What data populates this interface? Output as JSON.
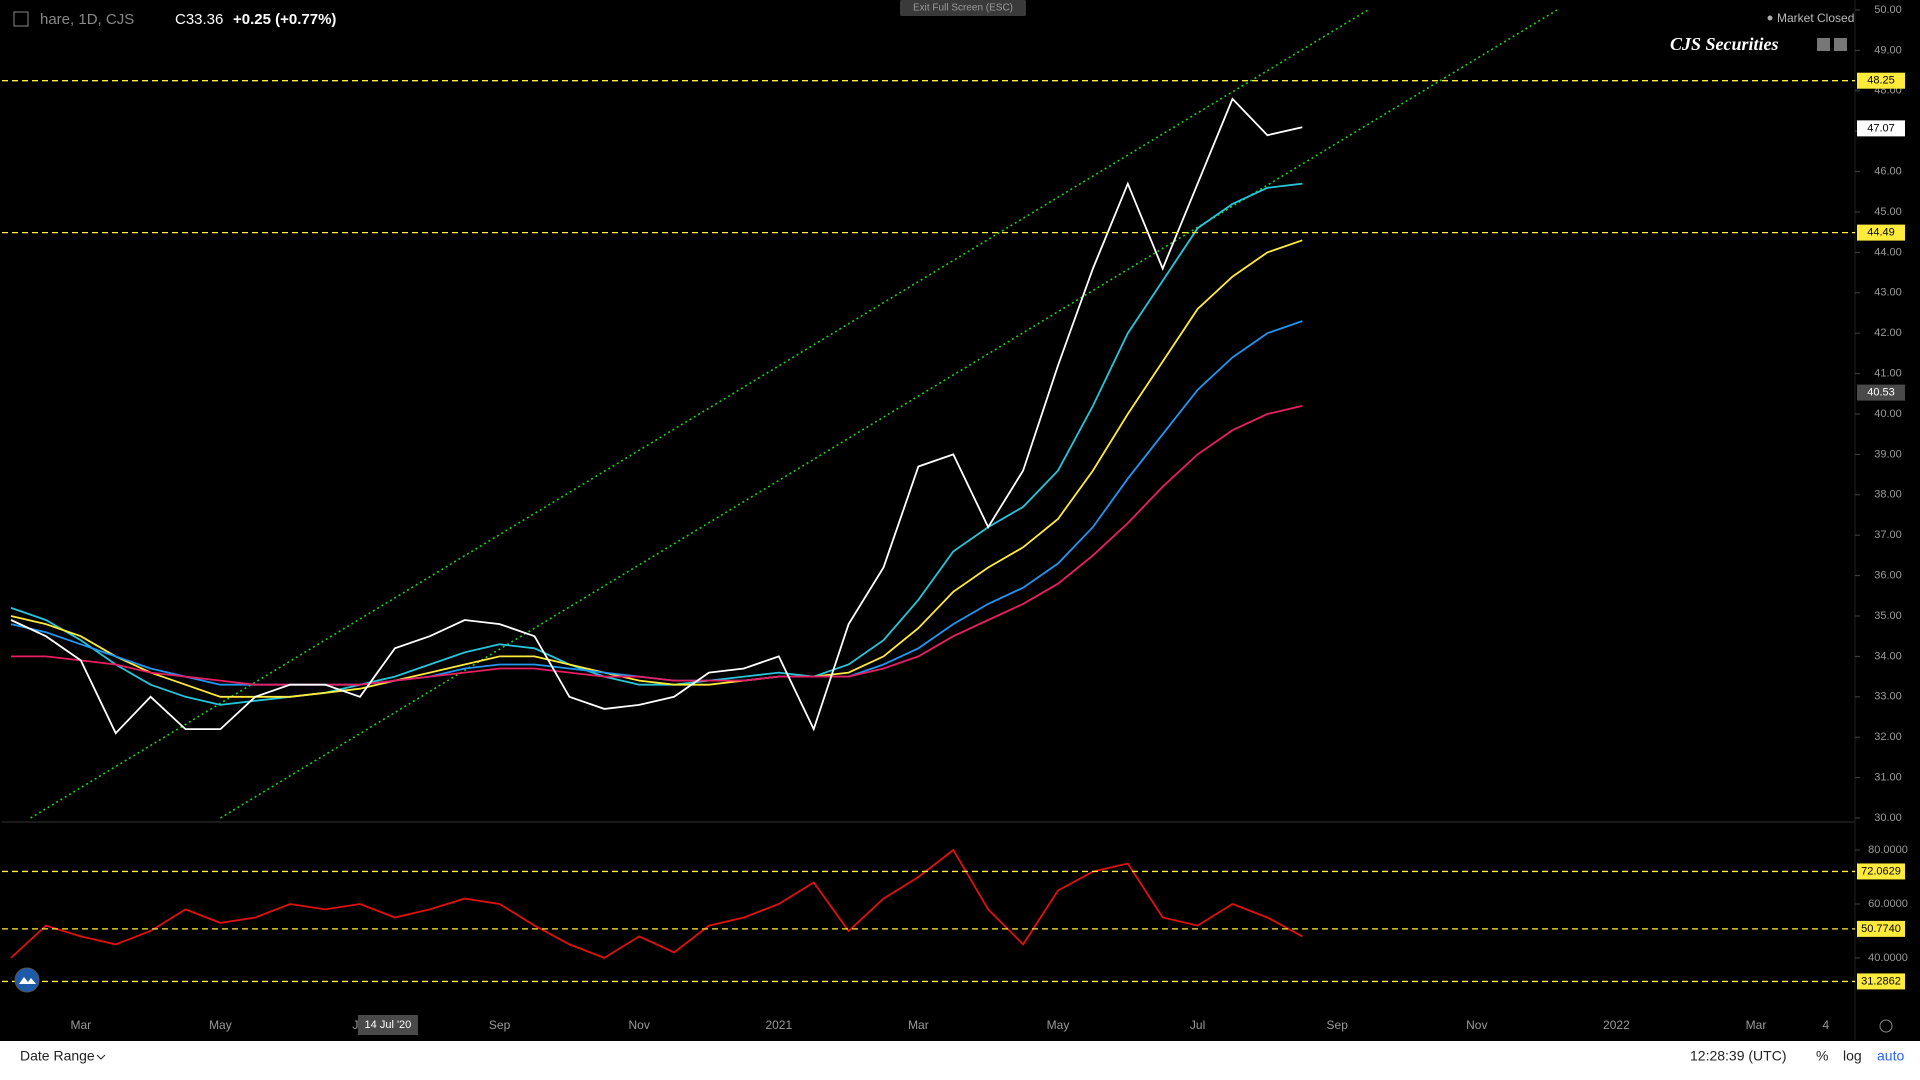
{
  "ui": {
    "symbol": "hare, 1D, CJS",
    "close": "C33.36",
    "change": "+0.25 (+0.77%)",
    "exit_fullscreen": "Exit Full Screen (ESC)",
    "market_status": "Market Closed",
    "brand": "CJS Securities",
    "date_range": "Date Range",
    "clock": "12:28:39 (UTC)",
    "percent": "%",
    "log": "log",
    "auto": "auto"
  },
  "chart_data": [
    {
      "type": "line",
      "categories": [
        null,
        null,
        "Mar",
        null,
        null,
        null,
        "May",
        null,
        null,
        null,
        "Jul",
        null,
        null,
        null,
        "Sep",
        null,
        null,
        null,
        "Nov",
        null,
        null,
        null,
        "2021",
        null,
        null,
        null,
        "Mar",
        null,
        null,
        null,
        "May",
        null,
        null,
        null,
        "Jul",
        null,
        null,
        null,
        "Sep",
        null,
        null,
        null,
        "Nov",
        null,
        null,
        null,
        "2022",
        null,
        null,
        null,
        "Mar",
        null,
        "4",
        null
      ],
      "crosshair_label": "14 Jul '20",
      "series": [
        {
          "color": "#26c6da",
          "values": [
            35.2,
            34.9,
            34.4,
            33.8,
            33.3,
            33.0,
            32.8,
            32.9,
            33.0,
            33.1,
            33.3,
            33.5,
            33.8,
            34.1,
            34.3,
            34.2,
            33.8,
            33.5,
            33.3,
            33.3,
            33.4,
            33.5,
            33.6,
            33.5,
            33.8,
            34.4,
            35.4,
            36.6,
            37.2,
            37.7,
            38.6,
            40.2,
            42.0,
            43.3,
            44.6,
            45.2,
            45.6,
            45.7,
            null,
            null,
            null,
            null,
            null,
            null,
            null,
            null,
            null,
            null,
            null,
            null,
            null,
            null,
            null,
            null
          ]
        },
        {
          "color": "#ffeb3b",
          "values": [
            35.0,
            34.8,
            34.5,
            34.0,
            33.6,
            33.3,
            33.0,
            33.0,
            33.0,
            33.1,
            33.2,
            33.4,
            33.6,
            33.8,
            34.0,
            34.0,
            33.8,
            33.6,
            33.4,
            33.3,
            33.3,
            33.4,
            33.5,
            33.5,
            33.6,
            34.0,
            34.7,
            35.6,
            36.2,
            36.7,
            37.4,
            38.6,
            40.0,
            41.3,
            42.6,
            43.4,
            44.0,
            44.3,
            null,
            null,
            null,
            null,
            null,
            null,
            null,
            null,
            null,
            null,
            null,
            null,
            null,
            null,
            null,
            null
          ]
        },
        {
          "color": "#2196f3",
          "values": [
            34.8,
            34.6,
            34.3,
            34.0,
            33.7,
            33.5,
            33.3,
            33.3,
            33.3,
            33.3,
            33.3,
            33.4,
            33.5,
            33.7,
            33.8,
            33.8,
            33.7,
            33.6,
            33.5,
            33.4,
            33.4,
            33.4,
            33.5,
            33.5,
            33.5,
            33.8,
            34.2,
            34.8,
            35.3,
            35.7,
            36.3,
            37.2,
            38.4,
            39.5,
            40.6,
            41.4,
            42.0,
            42.3,
            null,
            null,
            null,
            null,
            null,
            null,
            null,
            null,
            null,
            null,
            null,
            null,
            null,
            null,
            null,
            null
          ]
        },
        {
          "color": "#e91e63",
          "values": [
            34.0,
            34.0,
            33.9,
            33.8,
            33.6,
            33.5,
            33.4,
            33.3,
            33.3,
            33.3,
            33.3,
            33.4,
            33.5,
            33.6,
            33.7,
            33.7,
            33.6,
            33.5,
            33.5,
            33.4,
            33.4,
            33.4,
            33.5,
            33.5,
            33.5,
            33.7,
            34.0,
            34.5,
            34.9,
            35.3,
            35.8,
            36.5,
            37.3,
            38.2,
            39.0,
            39.6,
            40.0,
            40.2,
            null,
            null,
            null,
            null,
            null,
            null,
            null,
            null,
            null,
            null,
            null,
            null,
            null,
            null,
            null,
            null
          ]
        },
        {
          "color": "#ffffff",
          "values": [
            34.9,
            34.5,
            33.9,
            32.1,
            33.0,
            32.2,
            32.2,
            33.0,
            33.3,
            33.3,
            33.0,
            34.2,
            34.5,
            34.9,
            34.8,
            34.5,
            33.0,
            32.7,
            32.8,
            33.0,
            33.6,
            33.7,
            34.0,
            32.2,
            34.8,
            36.2,
            38.7,
            39.0,
            37.2,
            38.6,
            41.2,
            43.6,
            45.7,
            43.6,
            45.7,
            47.8,
            46.9,
            47.1,
            null,
            null,
            null,
            null,
            null,
            null,
            null,
            null,
            null,
            null,
            null,
            null,
            null,
            null,
            null,
            null
          ]
        }
      ],
      "trendlines": [
        {
          "color": "#22cc22",
          "x": [
            0.56,
            38.88
          ],
          "values": [
            30,
            50
          ]
        },
        {
          "color": "#22cc22",
          "x": [
            6.0,
            44.3
          ],
          "values": [
            30,
            50
          ]
        }
      ],
      "hlines": [
        48.25,
        44.49
      ],
      "hline_color": "#ffeb3b",
      "price_markers": [
        {
          "value": 47.07,
          "color": "#ffffff"
        },
        {
          "value": 40.53,
          "color": "#4a4a4a"
        }
      ],
      "ylim": [
        30,
        50
      ],
      "yticks": [
        {
          "value": 30,
          "label": "30.00"
        },
        {
          "value": 31,
          "label": "31.00"
        },
        {
          "value": 32,
          "label": "32.00"
        },
        {
          "value": 33,
          "label": "33.00"
        },
        {
          "value": 34,
          "label": "34.00"
        },
        {
          "value": 35,
          "label": "35.00"
        },
        {
          "value": 36,
          "label": "36.00"
        },
        {
          "value": 37,
          "label": "37.00"
        },
        {
          "value": 38,
          "label": "38.00"
        },
        {
          "value": 39,
          "label": "39.00"
        },
        {
          "value": 40,
          "label": "40.00"
        },
        {
          "value": 41,
          "label": "41.00"
        },
        {
          "value": 42,
          "label": "42.00"
        },
        {
          "value": 43,
          "label": "43.00"
        },
        {
          "value": 44,
          "label": "44.00"
        },
        {
          "value": 45,
          "label": "45.00"
        },
        {
          "value": 46,
          "label": "46.00"
        },
        {
          "value": 47,
          "label": "47.00"
        },
        {
          "value": 48,
          "label": "48.00"
        },
        {
          "value": 49,
          "label": "49.00"
        },
        {
          "value": 50,
          "label": "50.00"
        }
      ]
    },
    {
      "type": "line",
      "series": [
        {
          "color": "#e01010",
          "values": [
            40,
            52,
            48,
            45,
            50,
            58,
            53,
            55,
            60,
            58,
            60,
            55,
            58,
            62,
            60,
            52,
            45,
            40,
            48,
            42,
            52,
            55,
            60,
            68,
            50,
            62,
            70,
            80,
            58,
            45,
            65,
            72,
            75,
            55,
            52,
            60,
            55,
            48,
            null,
            null,
            null,
            null,
            null,
            null,
            null,
            null,
            null,
            null,
            null,
            null,
            null,
            null,
            null,
            null
          ]
        }
      ],
      "hlines": [
        {
          "value": 72.0629,
          "label": "72.0629"
        },
        {
          "value": 50.774,
          "label": "50.7740"
        },
        {
          "value": 31.2862,
          "label": "31.2862"
        }
      ],
      "hline_color": "#ffeb3b",
      "ylim": [
        24.4,
        90.4
      ],
      "yticks": [
        {
          "value": 40,
          "label": "40.0000"
        },
        {
          "value": 60,
          "label": "60.0000"
        },
        {
          "value": 80,
          "label": "80.0000"
        }
      ]
    }
  ]
}
